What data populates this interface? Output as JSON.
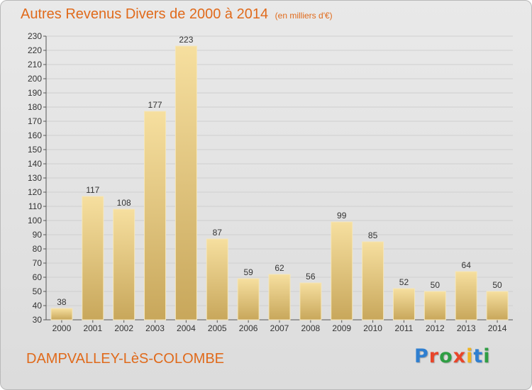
{
  "title": "Autres Revenus Divers de 2000 à 2014",
  "unit_note": "(en milliers d'€)",
  "place_name": "DAMPVALLEY-LèS-COLOMBE",
  "logo": {
    "letters": [
      "P",
      "r",
      "o",
      "x",
      "i",
      "t",
      "i"
    ],
    "colors": [
      "#2f7fd0",
      "#e8452a",
      "#2f9e44",
      "#e8452a",
      "#f0b420",
      "#2f7fd0",
      "#2f9e44"
    ]
  },
  "colors": {
    "bar_light": "#f4dc9a",
    "bar_dark": "#c9a95e",
    "accent": "#e06a1b"
  },
  "chart_data": {
    "type": "bar",
    "title": "Autres Revenus Divers de 2000 à 2014",
    "subtitle": "(en milliers d'€)",
    "categories": [
      "2000",
      "2001",
      "2002",
      "2003",
      "2004",
      "2005",
      "2006",
      "2007",
      "2008",
      "2009",
      "2010",
      "2011",
      "2012",
      "2013",
      "2014"
    ],
    "values": [
      38,
      117,
      108,
      177,
      223,
      87,
      59,
      62,
      56,
      99,
      85,
      52,
      50,
      64,
      50
    ],
    "ylim": [
      30,
      230
    ],
    "yticks": [
      30,
      40,
      50,
      60,
      70,
      80,
      90,
      100,
      110,
      120,
      130,
      140,
      150,
      160,
      170,
      180,
      190,
      200,
      210,
      220,
      230
    ],
    "grid": true
  }
}
